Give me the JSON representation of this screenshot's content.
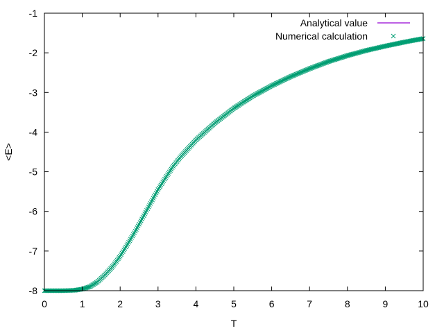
{
  "chart_data": {
    "type": "line",
    "title": "",
    "xlabel": "T",
    "ylabel": "<E>",
    "xlim": [
      0,
      10
    ],
    "ylim": [
      -8,
      -1
    ],
    "xticks": [
      0,
      1,
      2,
      3,
      4,
      5,
      6,
      7,
      8,
      9,
      10
    ],
    "yticks": [
      -8,
      -7,
      -6,
      -5,
      -4,
      -3,
      -2,
      -1
    ],
    "grid": false,
    "legend_position": "top-right",
    "series": [
      {
        "name": "Analytical value",
        "style": "line",
        "color": "#9400d3",
        "x": [
          0,
          0.5,
          0.8,
          1.0,
          1.2,
          1.4,
          1.6,
          1.8,
          2.0,
          2.2,
          2.4,
          2.6,
          2.8,
          3.0,
          3.2,
          3.4,
          3.6,
          3.8,
          4.0,
          4.5,
          5.0,
          5.5,
          6.0,
          6.5,
          7.0,
          7.5,
          8.0,
          8.5,
          9.0,
          9.5,
          10.0
        ],
        "y": [
          -8.0,
          -8.0,
          -7.99,
          -7.96,
          -7.9,
          -7.78,
          -7.6,
          -7.39,
          -7.13,
          -6.82,
          -6.5,
          -6.15,
          -5.8,
          -5.45,
          -5.15,
          -4.86,
          -4.62,
          -4.41,
          -4.2,
          -3.77,
          -3.4,
          -3.09,
          -2.83,
          -2.6,
          -2.4,
          -2.22,
          -2.07,
          -1.94,
          -1.83,
          -1.73,
          -1.64
        ]
      },
      {
        "name": "Numerical calculation",
        "style": "points",
        "marker": "x",
        "color": "#009e73",
        "x": [
          0,
          0.5,
          0.8,
          1.0,
          1.2,
          1.4,
          1.6,
          1.8,
          2.0,
          2.2,
          2.4,
          2.6,
          2.8,
          3.0,
          3.2,
          3.4,
          3.6,
          3.8,
          4.0,
          4.5,
          5.0,
          5.5,
          6.0,
          6.5,
          7.0,
          7.5,
          8.0,
          8.5,
          9.0,
          9.5,
          10.0
        ],
        "y": [
          -8.0,
          -8.0,
          -7.99,
          -7.96,
          -7.9,
          -7.78,
          -7.6,
          -7.39,
          -7.13,
          -6.82,
          -6.5,
          -6.15,
          -5.8,
          -5.45,
          -5.15,
          -4.86,
          -4.62,
          -4.41,
          -4.2,
          -3.77,
          -3.4,
          -3.09,
          -2.83,
          -2.6,
          -2.4,
          -2.22,
          -2.07,
          -1.94,
          -1.83,
          -1.73,
          -1.64
        ]
      }
    ]
  }
}
